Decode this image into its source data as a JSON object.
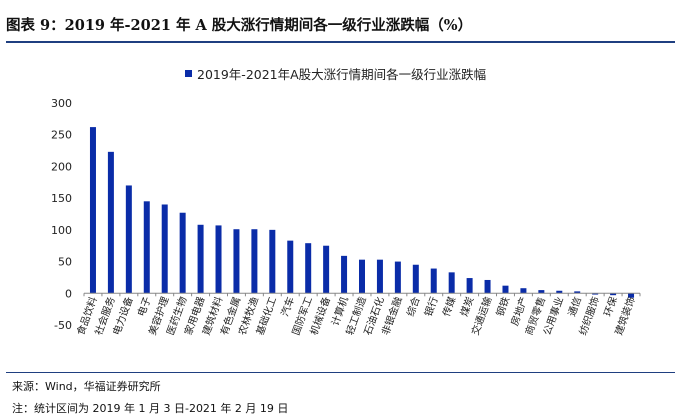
{
  "figure": {
    "title": "图表 9：2019 年-2021 年 A 股大涨行情期间各一级行业涨跌幅（%）",
    "source": "来源：Wind，华福证券研究所",
    "note": "注：统计区间为 2019 年 1 月 3 日-2021 年 2 月 19 日"
  },
  "chart_data": {
    "type": "bar",
    "title": "",
    "xlabel": "",
    "ylabel": "",
    "ylim": [
      -50,
      300
    ],
    "yticks": [
      -50,
      0,
      50,
      100,
      150,
      200,
      250,
      300
    ],
    "grid": false,
    "legend_position": "top",
    "bar_color": "#0a2ca8",
    "categories": [
      "食品饮料",
      "社会服务",
      "电力设备",
      "电子",
      "美容护理",
      "医药生物",
      "家用电器",
      "建筑材料",
      "有色金属",
      "农林牧渔",
      "基础化工",
      "汽车",
      "国防军工",
      "机械设备",
      "计算机",
      "轻工制造",
      "石油石化",
      "非银金融",
      "综合",
      "银行",
      "传媒",
      "煤炭",
      "交通运输",
      "钢铁",
      "房地产",
      "商贸零售",
      "公用事业",
      "通信",
      "纺织服饰",
      "环保",
      "建筑装饰"
    ],
    "series": [
      {
        "name": "2019年-2021年A股大涨行情期间各一级行业涨跌幅",
        "values": [
          262,
          223,
          170,
          145,
          140,
          127,
          108,
          107,
          101,
          101,
          100,
          83,
          79,
          75,
          59,
          53,
          53,
          50,
          45,
          39,
          33,
          24,
          21,
          12,
          8,
          5,
          4,
          3,
          -2,
          -3,
          -7
        ]
      }
    ]
  }
}
